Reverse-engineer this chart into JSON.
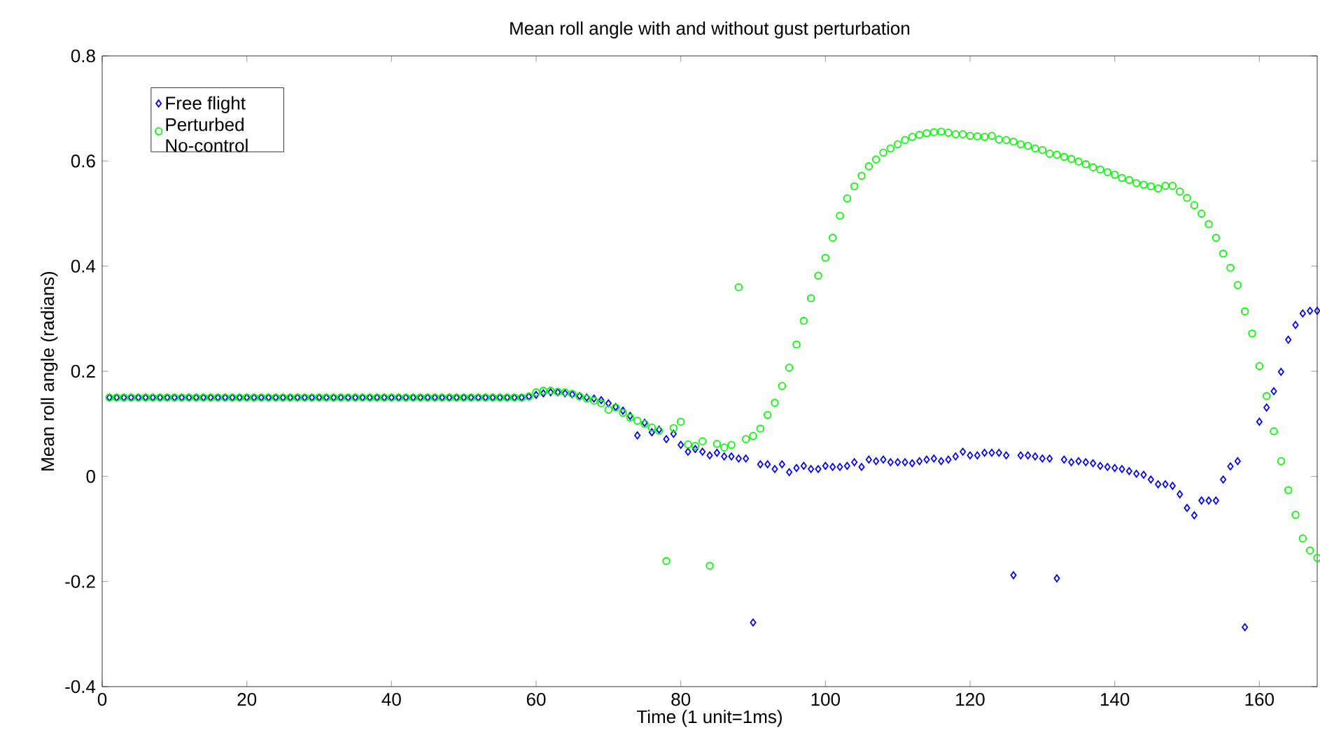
{
  "chart_data": {
    "type": "scatter",
    "title": "Mean roll angle with and without gust perturbation",
    "xlabel": "Time (1 unit=1ms)",
    "ylabel": "Mean roll angle (radians)",
    "xlim": [
      0,
      168
    ],
    "ylim": [
      -0.4,
      0.8
    ],
    "xticks": [
      0,
      20,
      40,
      60,
      80,
      100,
      120,
      140,
      160
    ],
    "yticks": [
      -0.4,
      -0.2,
      0,
      0.2,
      0.4,
      0.6,
      0.8
    ],
    "grid": false,
    "legend": "top left",
    "x": [
      1,
      2,
      3,
      4,
      5,
      6,
      7,
      8,
      9,
      10,
      11,
      12,
      13,
      14,
      15,
      16,
      17,
      18,
      19,
      20,
      21,
      22,
      23,
      24,
      25,
      26,
      27,
      28,
      29,
      30,
      31,
      32,
      33,
      34,
      35,
      36,
      37,
      38,
      39,
      40,
      41,
      42,
      43,
      44,
      45,
      46,
      47,
      48,
      49,
      50,
      51,
      52,
      53,
      54,
      55,
      56,
      57,
      58,
      59,
      60,
      61,
      62,
      63,
      64,
      65,
      66,
      67,
      68,
      69,
      70,
      71,
      72,
      73,
      74,
      75,
      76,
      77,
      78,
      79,
      80,
      81,
      82,
      83,
      84,
      85,
      86,
      87,
      88,
      89,
      90,
      91,
      92,
      93,
      94,
      95,
      96,
      97,
      98,
      99,
      100,
      101,
      102,
      103,
      104,
      105,
      106,
      107,
      108,
      109,
      110,
      111,
      112,
      113,
      114,
      115,
      116,
      117,
      118,
      119,
      120,
      121,
      122,
      123,
      124,
      125,
      126,
      127,
      128,
      129,
      130,
      131,
      132,
      133,
      134,
      135,
      136,
      137,
      138,
      139,
      140,
      141,
      142,
      143,
      144,
      145,
      146,
      147,
      148,
      149,
      150,
      151,
      152,
      153,
      154,
      155,
      156,
      157,
      158,
      159,
      160,
      161,
      162,
      163,
      164,
      165,
      166,
      167,
      168
    ],
    "series": [
      {
        "name": "Free flight",
        "color": "#0000ff",
        "marker": "diamond",
        "values": [
          0.15,
          0.15,
          0.15,
          0.15,
          0.15,
          0.15,
          0.15,
          0.15,
          0.15,
          0.15,
          0.15,
          0.15,
          0.15,
          0.15,
          0.15,
          0.15,
          0.15,
          0.15,
          0.15,
          0.15,
          0.15,
          0.15,
          0.15,
          0.15,
          0.15,
          0.15,
          0.15,
          0.15,
          0.15,
          0.15,
          0.15,
          0.15,
          0.15,
          0.15,
          0.15,
          0.15,
          0.15,
          0.15,
          0.15,
          0.15,
          0.15,
          0.15,
          0.15,
          0.15,
          0.15,
          0.15,
          0.15,
          0.15,
          0.15,
          0.15,
          0.15,
          0.15,
          0.15,
          0.15,
          0.15,
          0.15,
          0.15,
          0.15,
          0.152,
          0.155,
          0.158,
          0.16,
          0.16,
          0.158,
          0.156,
          0.153,
          0.15,
          0.148,
          0.145,
          0.139,
          0.132,
          0.125,
          0.115,
          0.078,
          0.102,
          0.084,
          0.089,
          0.071,
          0.081,
          0.06,
          0.047,
          0.052,
          0.047,
          0.04,
          0.045,
          0.038,
          0.038,
          0.034,
          0.034,
          -0.278,
          0.023,
          0.023,
          0.014,
          0.023,
          0.008,
          0.016,
          0.02,
          0.014,
          0.014,
          0.02,
          0.018,
          0.018,
          0.02,
          0.027,
          0.018,
          0.032,
          0.029,
          0.032,
          0.027,
          0.027,
          0.027,
          0.025,
          0.029,
          0.032,
          0.034,
          0.029,
          0.032,
          0.038,
          0.047,
          0.04,
          0.04,
          0.045,
          0.045,
          0.045,
          0.04,
          -0.188,
          0.04,
          0.04,
          0.038,
          0.034,
          0.034,
          -0.194,
          0.032,
          0.027,
          0.029,
          0.027,
          0.025,
          0.02,
          0.018,
          0.016,
          0.014,
          0.01,
          0.005,
          0.003,
          -0.006,
          -0.015,
          -0.015,
          -0.018,
          -0.034,
          -0.06,
          -0.074,
          -0.046,
          -0.046,
          -0.046,
          -0.006,
          0.019,
          0.029,
          -0.287,
          null,
          0.104,
          0.131,
          0.162,
          0.199,
          0.26,
          0.288,
          0.31,
          0.315,
          0.315
        ]
      },
      {
        "name": "Perturbed No-control",
        "color": "#00ff00",
        "marker": "circle",
        "values": [
          0.15,
          0.15,
          0.15,
          0.15,
          0.15,
          0.15,
          0.15,
          0.15,
          0.15,
          0.15,
          0.15,
          0.15,
          0.15,
          0.15,
          0.15,
          0.15,
          0.15,
          0.15,
          0.15,
          0.15,
          0.15,
          0.15,
          0.15,
          0.15,
          0.15,
          0.15,
          0.15,
          0.15,
          0.15,
          0.15,
          0.15,
          0.15,
          0.15,
          0.15,
          0.15,
          0.15,
          0.15,
          0.15,
          0.15,
          0.15,
          0.15,
          0.15,
          0.15,
          0.15,
          0.15,
          0.15,
          0.15,
          0.15,
          0.15,
          0.15,
          0.15,
          0.15,
          0.15,
          0.15,
          0.15,
          0.15,
          0.15,
          0.15,
          0.152,
          0.16,
          0.163,
          0.163,
          0.161,
          0.16,
          0.157,
          0.152,
          0.148,
          0.144,
          0.139,
          0.127,
          0.131,
          0.121,
          0.112,
          0.106,
          0.1,
          0.093,
          0.087,
          -0.161,
          0.092,
          0.104,
          0.061,
          0.058,
          0.067,
          -0.17,
          0.062,
          0.055,
          0.06,
          0.36,
          0.071,
          0.077,
          0.091,
          0.117,
          0.14,
          0.172,
          0.207,
          0.251,
          0.296,
          0.339,
          0.382,
          0.416,
          0.454,
          0.496,
          0.529,
          0.552,
          0.572,
          0.59,
          0.603,
          0.616,
          0.624,
          0.632,
          0.64,
          0.646,
          0.65,
          0.653,
          0.655,
          0.656,
          0.654,
          0.651,
          0.651,
          0.648,
          0.647,
          0.646,
          0.648,
          0.641,
          0.64,
          0.637,
          0.632,
          0.629,
          0.624,
          0.621,
          0.614,
          0.612,
          0.608,
          0.604,
          0.599,
          0.594,
          0.588,
          0.584,
          0.579,
          0.574,
          0.568,
          0.564,
          0.558,
          0.555,
          0.552,
          0.548,
          0.553,
          0.553,
          0.542,
          0.53,
          0.516,
          0.5,
          0.48,
          0.454,
          0.424,
          0.397,
          0.364,
          0.314,
          0.272,
          0.21,
          0.153,
          0.086,
          0.029,
          -0.026,
          -0.073,
          -0.118,
          -0.141,
          -0.155
        ]
      }
    ]
  }
}
